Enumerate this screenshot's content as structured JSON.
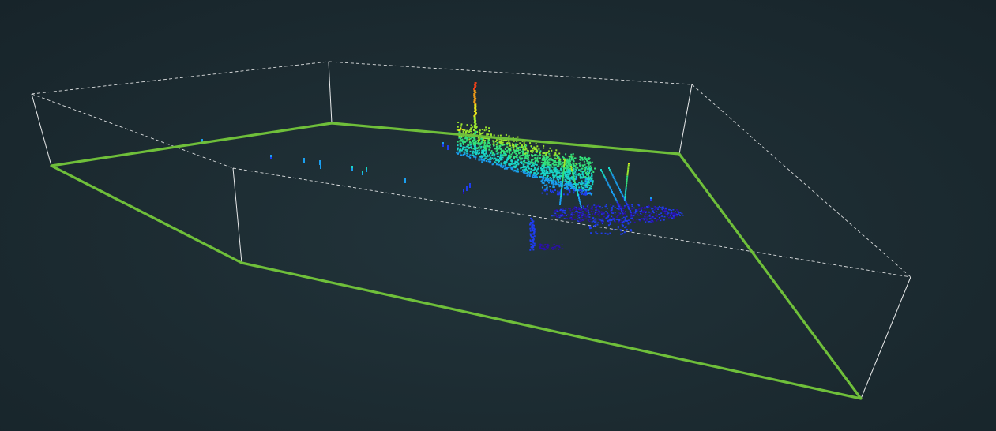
{
  "viewer": {
    "background_color": "#1b2a30",
    "crop_polygon_color": "#6fbf3a",
    "bounding_box_color": "#ffffff",
    "colormap": "jet",
    "colormap_stops": [
      "#2b0fa8",
      "#1f3df0",
      "#1a9ff0",
      "#19d6c8",
      "#33e07a",
      "#9be62e",
      "#e6e31c",
      "#f09a17",
      "#e8401a"
    ]
  }
}
